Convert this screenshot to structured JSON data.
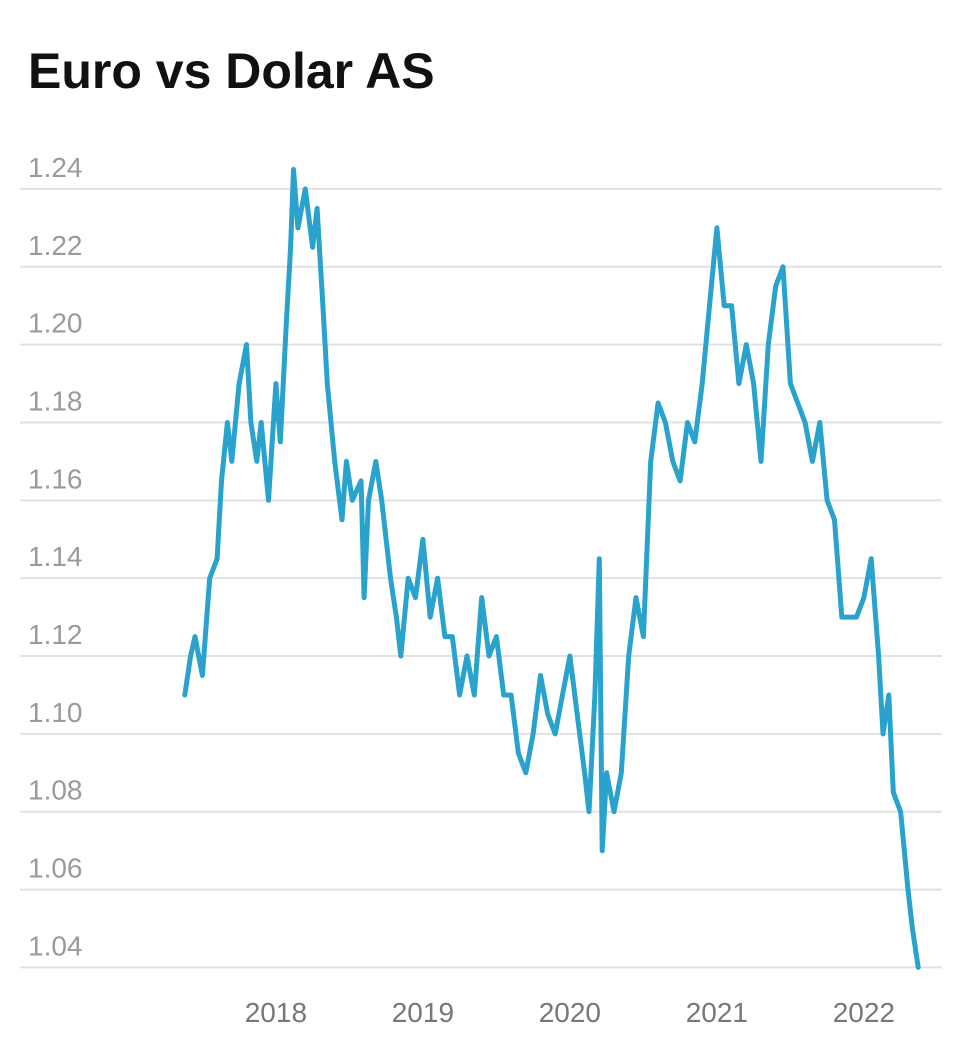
{
  "chart_data": {
    "type": "line",
    "title": "Euro vs Dolar AS",
    "x": [
      2017.38,
      2017.42,
      2017.45,
      2017.5,
      2017.55,
      2017.6,
      2017.63,
      2017.67,
      2017.7,
      2017.75,
      2017.8,
      2017.83,
      2017.87,
      2017.9,
      2017.95,
      2018.0,
      2018.03,
      2018.07,
      2018.1,
      2018.12,
      2018.15,
      2018.2,
      2018.25,
      2018.28,
      2018.32,
      2018.35,
      2018.4,
      2018.45,
      2018.48,
      2018.52,
      2018.58,
      2018.6,
      2018.63,
      2018.68,
      2018.72,
      2018.78,
      2018.82,
      2018.85,
      2018.9,
      2018.95,
      2019.0,
      2019.05,
      2019.1,
      2019.15,
      2019.2,
      2019.25,
      2019.3,
      2019.35,
      2019.4,
      2019.45,
      2019.5,
      2019.55,
      2019.6,
      2019.65,
      2019.7,
      2019.75,
      2019.8,
      2019.85,
      2019.9,
      2019.95,
      2020.0,
      2020.05,
      2020.1,
      2020.13,
      2020.17,
      2020.2,
      2020.22,
      2020.25,
      2020.3,
      2020.35,
      2020.4,
      2020.45,
      2020.5,
      2020.55,
      2020.6,
      2020.65,
      2020.7,
      2020.75,
      2020.8,
      2020.85,
      2020.9,
      2020.95,
      2021.0,
      2021.05,
      2021.1,
      2021.15,
      2021.2,
      2021.25,
      2021.3,
      2021.35,
      2021.4,
      2021.45,
      2021.5,
      2021.55,
      2021.6,
      2021.65,
      2021.7,
      2021.75,
      2021.8,
      2021.85,
      2021.9,
      2021.95,
      2022.0,
      2022.05,
      2022.1,
      2022.13,
      2022.17,
      2022.2,
      2022.25,
      2022.3,
      2022.33,
      2022.37
    ],
    "series": [
      {
        "color": "#29a3cc",
        "values": [
          1.11,
          1.12,
          1.125,
          1.115,
          1.14,
          1.145,
          1.165,
          1.18,
          1.17,
          1.19,
          1.2,
          1.18,
          1.17,
          1.18,
          1.16,
          1.19,
          1.175,
          1.205,
          1.225,
          1.245,
          1.23,
          1.24,
          1.225,
          1.235,
          1.21,
          1.19,
          1.17,
          1.155,
          1.17,
          1.16,
          1.165,
          1.135,
          1.16,
          1.17,
          1.16,
          1.14,
          1.13,
          1.12,
          1.14,
          1.135,
          1.15,
          1.13,
          1.14,
          1.125,
          1.125,
          1.11,
          1.12,
          1.11,
          1.135,
          1.12,
          1.125,
          1.11,
          1.11,
          1.095,
          1.09,
          1.1,
          1.115,
          1.105,
          1.1,
          1.11,
          1.12,
          1.105,
          1.09,
          1.08,
          1.11,
          1.145,
          1.07,
          1.09,
          1.08,
          1.09,
          1.12,
          1.135,
          1.125,
          1.17,
          1.185,
          1.18,
          1.17,
          1.165,
          1.18,
          1.175,
          1.19,
          1.21,
          1.23,
          1.21,
          1.21,
          1.19,
          1.2,
          1.19,
          1.17,
          1.2,
          1.215,
          1.22,
          1.19,
          1.185,
          1.18,
          1.17,
          1.18,
          1.16,
          1.155,
          1.13,
          1.13,
          1.13,
          1.135,
          1.145,
          1.12,
          1.1,
          1.11,
          1.085,
          1.08,
          1.06,
          1.05,
          1.04
        ]
      }
    ],
    "xlim": [
      2017.3,
      2022.45
    ],
    "xticks": [
      2018,
      2019,
      2020,
      2021,
      2022
    ],
    "ylim": [
      1.036,
      1.25
    ],
    "yticks": [
      1.04,
      1.06,
      1.08,
      {
        "value": 1.1,
        "label": "1.10"
      },
      1.12,
      1.14,
      1.16,
      1.18,
      {
        "value": 1.2,
        "label": "1.20"
      },
      1.22,
      1.24
    ],
    "grid": true
  }
}
